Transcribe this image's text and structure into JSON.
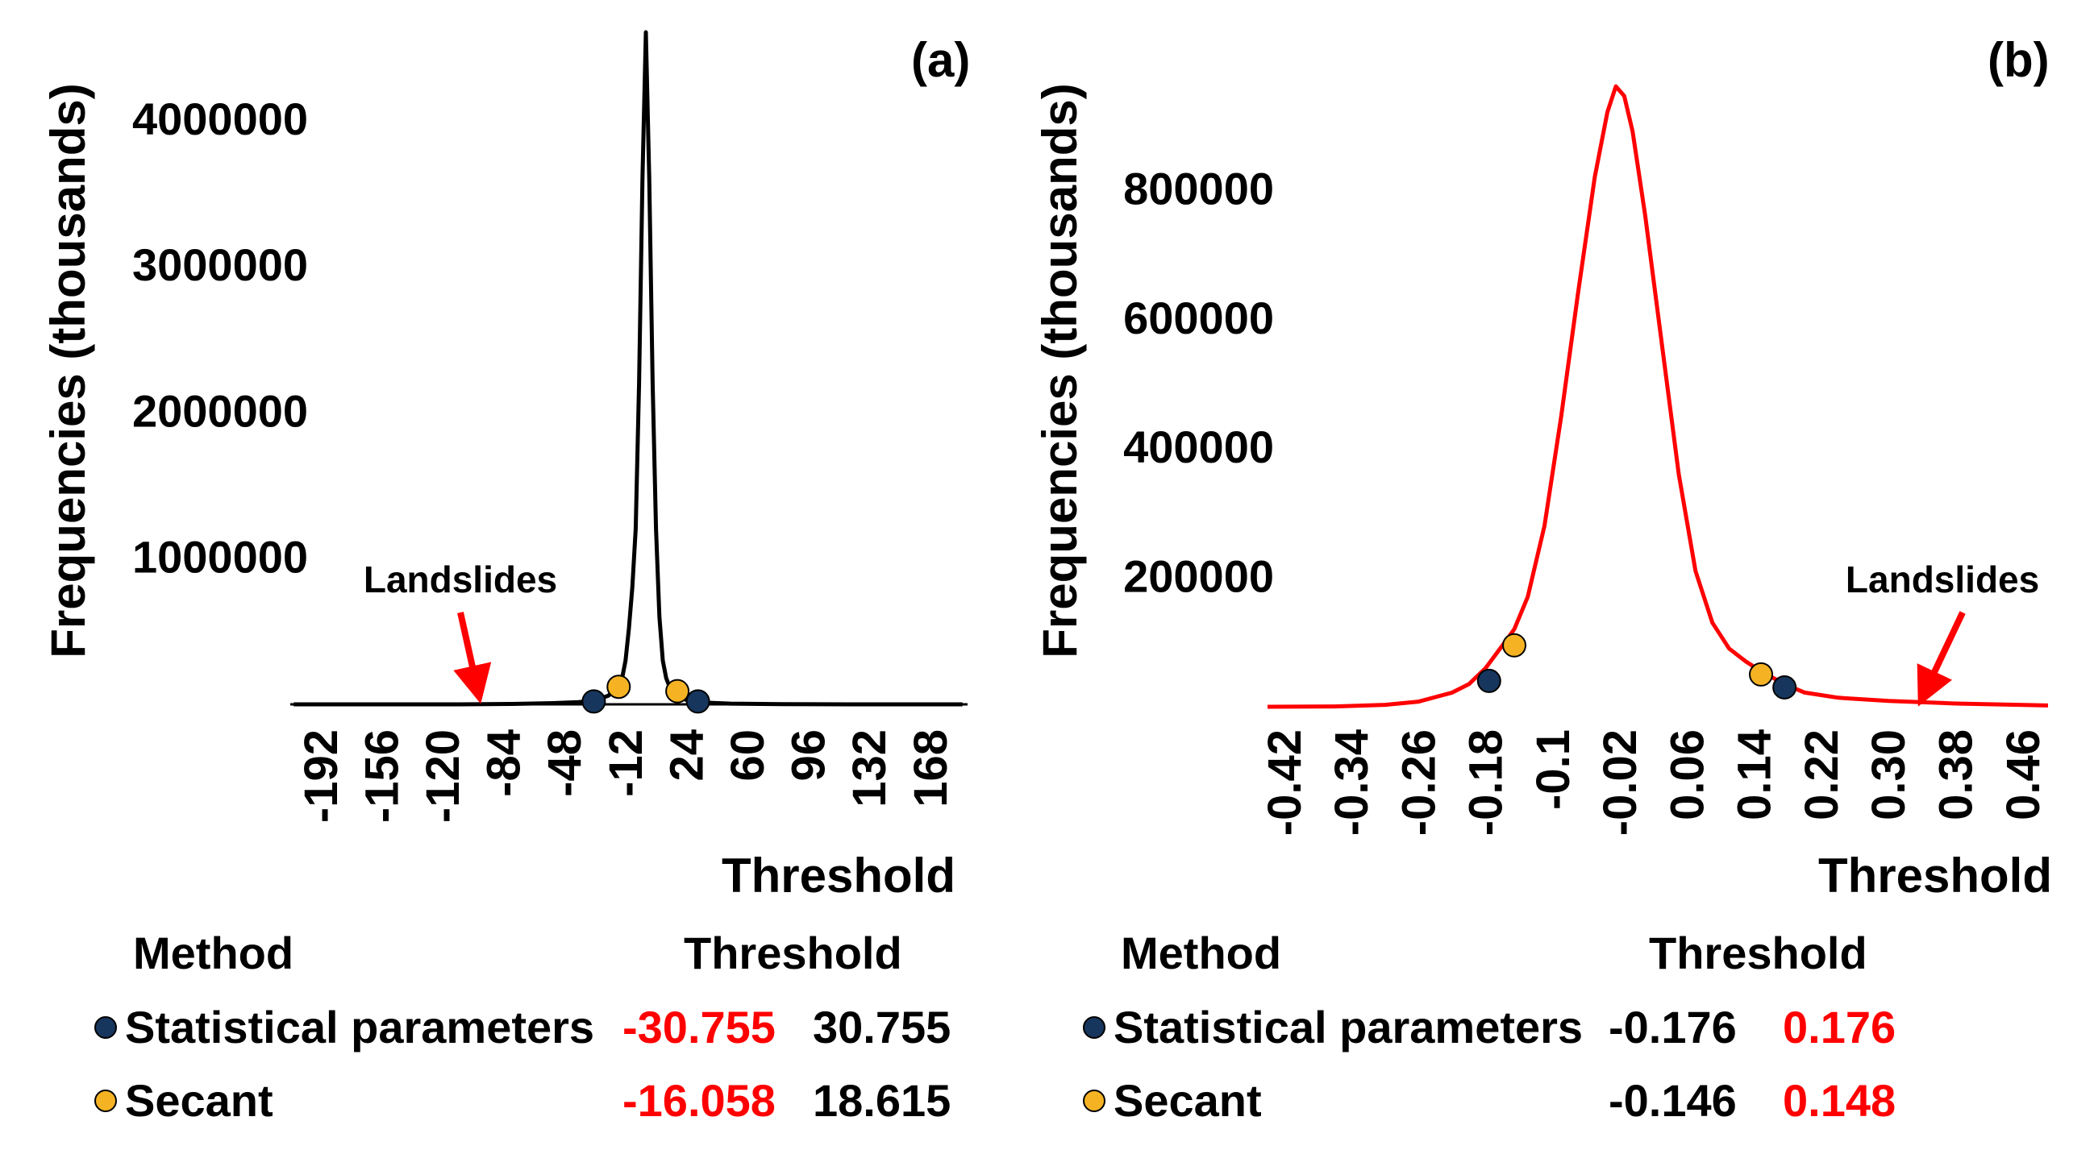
{
  "colors": {
    "statistical": "#17365d",
    "secant": "#f5b324",
    "red": "#ff0000",
    "curve_a": "#000000",
    "curve_b": "#ff0000"
  },
  "chart_data": [
    {
      "type": "line",
      "panel_label": "(a)",
      "xlabel": "Threshold",
      "ylabel": "Frequencies (thousands)",
      "xlim": [
        -210,
        190
      ],
      "ylim": [
        0,
        4600000
      ],
      "x_ticks": [
        "-192",
        "-156",
        "-120",
        "-84",
        "-48",
        "-12",
        "24",
        "60",
        "96",
        "132",
        "168"
      ],
      "x_tick_values": [
        -192,
        -156,
        -120,
        -84,
        -48,
        -12,
        24,
        60,
        96,
        132,
        168
      ],
      "y_ticks": [
        "1000000",
        "2000000",
        "3000000",
        "4000000"
      ],
      "y_tick_values": [
        1000000,
        2000000,
        3000000,
        4000000
      ],
      "annotation": {
        "text": "Landslides",
        "x": -100
      },
      "series": [
        {
          "name": "curve",
          "x": [
            -208,
            -150,
            -110,
            -80,
            -55,
            -40,
            -30,
            -22,
            -18,
            -14,
            -12,
            -10,
            -8,
            -6,
            -4,
            -2,
            0,
            2,
            4,
            6,
            8,
            10,
            12,
            14,
            18,
            24,
            35,
            50,
            80,
            120,
            187
          ],
          "y": [
            0,
            0,
            0,
            3000,
            8000,
            15000,
            25000,
            60000,
            110000,
            180000,
            300000,
            520000,
            800000,
            1200000,
            2200000,
            3600000,
            4600000,
            3600000,
            2200000,
            1200000,
            600000,
            300000,
            180000,
            120000,
            60000,
            30000,
            12000,
            5000,
            1500,
            0,
            0
          ]
        }
      ],
      "markers": [
        {
          "method": "Statistical parameters",
          "x": -30.755,
          "y": 20000
        },
        {
          "method": "Secant",
          "x": -16.058,
          "y": 120000
        },
        {
          "method": "Secant",
          "x": 18.615,
          "y": 90000
        },
        {
          "method": "Statistical parameters",
          "x": 30.755,
          "y": 20000
        }
      ]
    },
    {
      "type": "line",
      "panel_label": "(b)",
      "xlabel": "Threshold",
      "ylabel": "Frequencies (thousands)",
      "xlim": [
        -0.44,
        0.49
      ],
      "ylim": [
        0,
        1000000
      ],
      "x_ticks": [
        "-0.42",
        "-0.34",
        "-0.26",
        "-0.18",
        "-0.1",
        "-0.02",
        "0.06",
        "0.14",
        "0.22",
        "0.30",
        "0.38",
        "0.46"
      ],
      "x_tick_values": [
        -0.42,
        -0.34,
        -0.26,
        -0.18,
        -0.1,
        -0.02,
        0.06,
        0.14,
        0.22,
        0.3,
        0.38,
        0.46
      ],
      "y_ticks": [
        "200000",
        "400000",
        "600000",
        "800000"
      ],
      "y_tick_values": [
        200000,
        400000,
        600000,
        800000
      ],
      "annotation": {
        "text": "Landslides",
        "x": 0.345
      },
      "series": [
        {
          "name": "curve",
          "x": [
            -0.44,
            -0.36,
            -0.3,
            -0.26,
            -0.22,
            -0.2,
            -0.18,
            -0.16,
            -0.146,
            -0.13,
            -0.11,
            -0.09,
            -0.07,
            -0.05,
            -0.035,
            -0.025,
            -0.015,
            -0.005,
            0.01,
            0.03,
            0.05,
            0.07,
            0.09,
            0.11,
            0.13,
            0.148,
            0.176,
            0.2,
            0.24,
            0.3,
            0.38,
            0.49
          ],
          "y": [
            0,
            500,
            3000,
            8000,
            22000,
            35000,
            60000,
            95000,
            120000,
            170000,
            280000,
            450000,
            640000,
            820000,
            920000,
            960000,
            945000,
            890000,
            760000,
            560000,
            360000,
            210000,
            130000,
            90000,
            70000,
            55000,
            35000,
            22000,
            14000,
            9000,
            5000,
            2000
          ]
        }
      ],
      "markers": [
        {
          "method": "Statistical parameters",
          "x": -0.176,
          "y": 40000
        },
        {
          "method": "Secant",
          "x": -0.146,
          "y": 95000
        },
        {
          "method": "Secant",
          "x": 0.148,
          "y": 50000
        },
        {
          "method": "Statistical parameters",
          "x": 0.176,
          "y": 30000
        }
      ]
    }
  ],
  "legends": [
    {
      "method_header": "Method",
      "threshold_header": "Threshold",
      "rows": [
        {
          "label": "Statistical parameters",
          "low": "-30.755",
          "high": "30.755",
          "low_red": true,
          "high_red": false
        },
        {
          "label": "Secant",
          "low": "-16.058",
          "high": "18.615",
          "low_red": true,
          "high_red": false
        }
      ]
    },
    {
      "method_header": "Method",
      "threshold_header": "Threshold",
      "rows": [
        {
          "label": "Statistical parameters",
          "low": "-0.176",
          "high": "0.176",
          "low_red": false,
          "high_red": true
        },
        {
          "label": "Secant",
          "low": "-0.146",
          "high": "0.148",
          "low_red": false,
          "high_red": true
        }
      ]
    }
  ]
}
